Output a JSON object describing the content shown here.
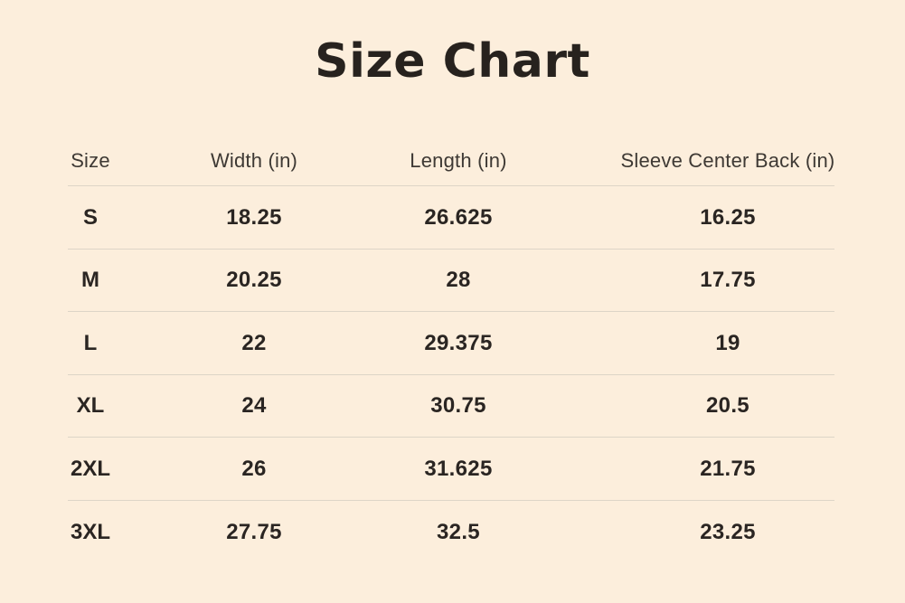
{
  "page": {
    "title": "Size Chart",
    "background_color": "#fceedc",
    "title_color": "#27221e",
    "header_text_color": "#3e3934",
    "value_text_color": "#2a2522",
    "divider_color": "#ddd5c7"
  },
  "table": {
    "columns": {
      "size": "Size",
      "width": "Width (in)",
      "length": "Length (in)",
      "sleeve": "Sleeve Center Back (in)"
    },
    "rows": [
      {
        "size": "S",
        "width": "18.25",
        "length": "26.625",
        "sleeve": "16.25"
      },
      {
        "size": "M",
        "width": "20.25",
        "length": "28",
        "sleeve": "17.75"
      },
      {
        "size": "L",
        "width": "22",
        "length": "29.375",
        "sleeve": "19"
      },
      {
        "size": "XL",
        "width": "24",
        "length": "30.75",
        "sleeve": "20.5"
      },
      {
        "size": "2XL",
        "width": "26",
        "length": "31.625",
        "sleeve": "21.75"
      },
      {
        "size": "3XL",
        "width": "27.75",
        "length": "32.5",
        "sleeve": "23.25"
      }
    ]
  }
}
